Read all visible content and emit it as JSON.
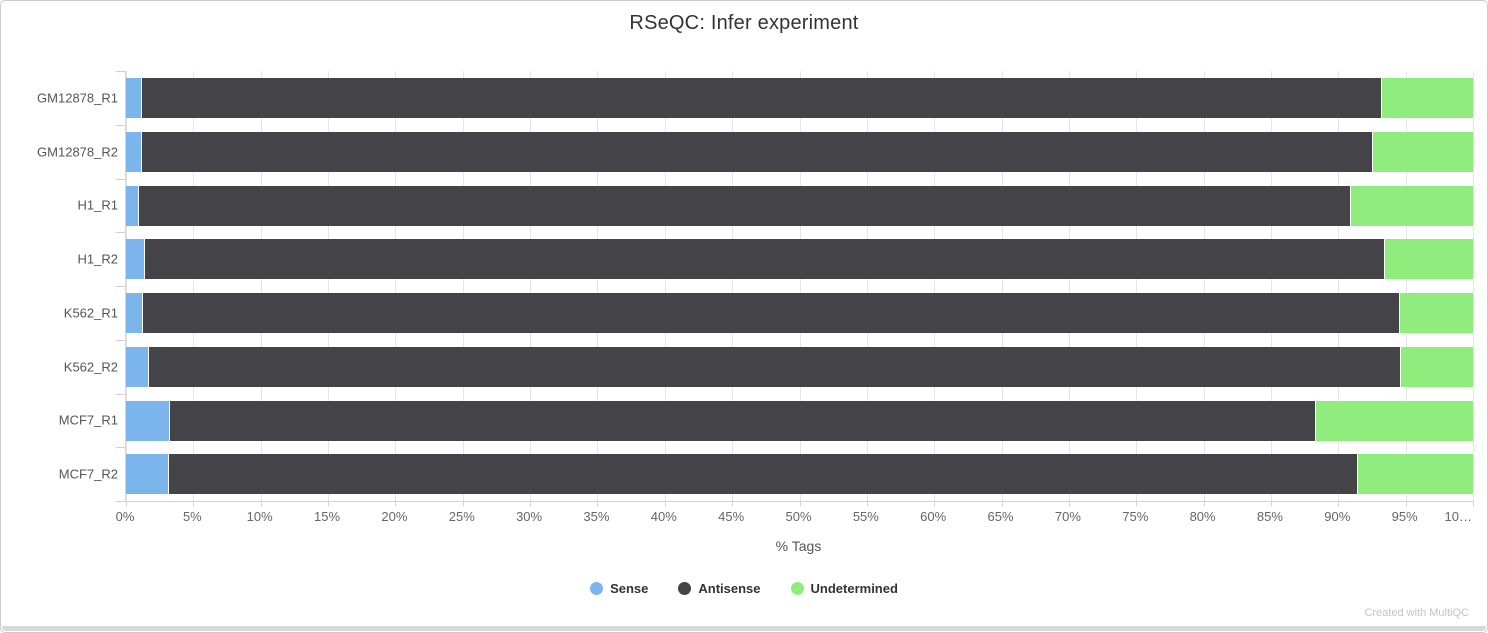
{
  "title": "RSeQC: Infer experiment",
  "credit": "Created with MultiQC",
  "chart_data": {
    "type": "bar",
    "orientation": "horizontal",
    "stacked": true,
    "title": "RSeQC: Infer experiment",
    "xlabel": "% Tags",
    "xlim": [
      0,
      100
    ],
    "grid": true,
    "legend_position": "bottom",
    "x_tick_values": [
      0,
      5,
      10,
      15,
      20,
      25,
      30,
      35,
      40,
      45,
      50,
      55,
      60,
      65,
      70,
      75,
      80,
      85,
      90,
      95,
      100
    ],
    "x_tick_labels": [
      "0%",
      "5%",
      "10%",
      "15%",
      "20%",
      "25%",
      "30%",
      "35%",
      "40%",
      "45%",
      "50%",
      "55%",
      "60%",
      "65%",
      "70%",
      "75%",
      "80%",
      "85%",
      "90%",
      "95%",
      "10…"
    ],
    "categories": [
      "GM12878_R1",
      "GM12878_R2",
      "H1_R1",
      "H1_R2",
      "K562_R1",
      "K562_R2",
      "MCF7_R1",
      "MCF7_R2"
    ],
    "series": [
      {
        "name": "Sense",
        "color": "#7cb5ec",
        "values": [
          1.1,
          1.1,
          0.9,
          1.3,
          1.2,
          1.6,
          3.2,
          3.1
        ]
      },
      {
        "name": "Antisense",
        "color": "#434348",
        "values": [
          92.1,
          91.4,
          90.0,
          92.1,
          93.3,
          93.0,
          85.1,
          88.3
        ]
      },
      {
        "name": "Undetermined",
        "color": "#90ed7d",
        "values": [
          6.8,
          7.5,
          9.1,
          6.6,
          5.5,
          5.4,
          11.7,
          8.6
        ]
      }
    ]
  }
}
